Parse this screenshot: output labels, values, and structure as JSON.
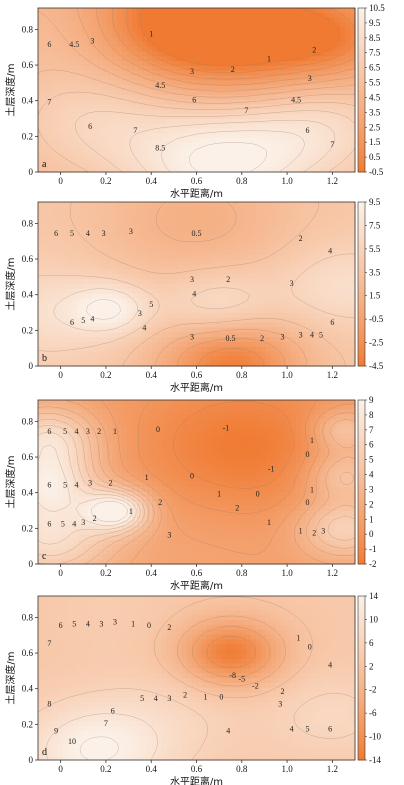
{
  "chart_data": [
    {
      "type": "heatmap",
      "panel_label": "a",
      "xlabel": "水平距离/m",
      "ylabel": "土层深度/m",
      "x_ticks": [
        "0",
        "0.2",
        "0.4",
        "0.6",
        "0.8",
        "1.0",
        "1.2"
      ],
      "y_ticks": [
        "0",
        "0.2",
        "0.4",
        "0.6",
        "0.8"
      ],
      "xlim": [
        -0.1,
        1.3
      ],
      "ylim": [
        0,
        0.92
      ],
      "colorbar": {
        "ticks": [
          "10.5",
          "9.5",
          "8.5",
          "7.5",
          "6.5",
          "5.5",
          "4.5",
          "3.5",
          "2.5",
          "1.5",
          "0.5",
          "-0.5"
        ],
        "min": -0.5,
        "max": 10.5,
        "low_color": "#f07a32",
        "high_color": "#fbf1e8"
      },
      "peaks": [
        {
          "x": 0.7,
          "y": 0.05,
          "value": 10.5,
          "r": 0.28
        },
        {
          "x": 0.15,
          "y": 0.3,
          "value": 7.5,
          "r": 0.28
        },
        {
          "x": 1.15,
          "y": 0.25,
          "value": 8,
          "r": 0.25
        },
        {
          "x": 0.5,
          "y": 0.85,
          "value": -0.5,
          "r": 0.3
        },
        {
          "x": 0.85,
          "y": 0.75,
          "value": 0,
          "r": 0.3
        },
        {
          "x": 1.2,
          "y": 0.75,
          "value": 1.5,
          "r": 0.2
        },
        {
          "x": 0.05,
          "y": 0.8,
          "value": 5.5,
          "r": 0.2
        }
      ],
      "base": 4.5,
      "contour_labels": [
        {
          "text": "6",
          "x": -0.05,
          "y": 0.7
        },
        {
          "text": "4.5",
          "x": 0.06,
          "y": 0.7
        },
        {
          "text": "3",
          "x": 0.14,
          "y": 0.72
        },
        {
          "text": "1",
          "x": 0.4,
          "y": 0.76
        },
        {
          "text": "3",
          "x": 0.58,
          "y": 0.55
        },
        {
          "text": "2",
          "x": 0.76,
          "y": 0.56
        },
        {
          "text": "1",
          "x": 0.92,
          "y": 0.62
        },
        {
          "text": "2",
          "x": 1.12,
          "y": 0.67
        },
        {
          "text": "4.5",
          "x": 0.44,
          "y": 0.47
        },
        {
          "text": "6",
          "x": 0.59,
          "y": 0.39
        },
        {
          "text": "7",
          "x": 0.82,
          "y": 0.33
        },
        {
          "text": "3",
          "x": 1.1,
          "y": 0.51
        },
        {
          "text": "4.5",
          "x": 1.04,
          "y": 0.39
        },
        {
          "text": "7",
          "x": -0.05,
          "y": 0.38
        },
        {
          "text": "6",
          "x": 0.13,
          "y": 0.24
        },
        {
          "text": "7",
          "x": 0.33,
          "y": 0.22
        },
        {
          "text": "6",
          "x": 1.09,
          "y": 0.22
        },
        {
          "text": "7",
          "x": 1.2,
          "y": 0.14
        },
        {
          "text": "8.5",
          "x": 0.44,
          "y": 0.12
        }
      ]
    },
    {
      "type": "heatmap",
      "panel_label": "b",
      "xlabel": "水平距离/m",
      "ylabel": "土层深度/m",
      "x_ticks": [
        "0",
        "0.2",
        "0.4",
        "0.6",
        "0.8",
        "1.0",
        "1.2"
      ],
      "y_ticks": [
        "0",
        "0.2",
        "0.4",
        "0.6",
        "0.8"
      ],
      "xlim": [
        -0.1,
        1.3
      ],
      "ylim": [
        0,
        0.92
      ],
      "colorbar": {
        "ticks": [
          "9.5",
          "7.5",
          "5.5",
          "3.5",
          "1.5",
          "-0.5",
          "-2.5",
          "-4.5"
        ],
        "min": -4.5,
        "max": 9.5,
        "low_color": "#f07a32",
        "high_color": "#fbf1e8"
      },
      "peaks": [
        {
          "x": 0.75,
          "y": 0.02,
          "value": -4.5,
          "r": 0.22
        },
        {
          "x": 0.22,
          "y": 0.32,
          "value": 9,
          "r": 0.12
        },
        {
          "x": 0.7,
          "y": 0.32,
          "value": 8,
          "r": 0.18
        },
        {
          "x": -0.05,
          "y": 0.3,
          "value": 7,
          "r": 0.22
        },
        {
          "x": 1.25,
          "y": 0.45,
          "value": 7,
          "r": 0.2
        },
        {
          "x": 0.6,
          "y": 0.82,
          "value": 1,
          "r": 0.3
        }
      ],
      "base": 4,
      "contour_labels": [
        {
          "text": "6",
          "x": -0.02,
          "y": 0.73
        },
        {
          "text": "5",
          "x": 0.05,
          "y": 0.73
        },
        {
          "text": "4",
          "x": 0.12,
          "y": 0.73
        },
        {
          "text": "3",
          "x": 0.19,
          "y": 0.73
        },
        {
          "text": "3",
          "x": 0.31,
          "y": 0.74
        },
        {
          "text": "0.5",
          "x": 0.6,
          "y": 0.73
        },
        {
          "text": "2",
          "x": 1.06,
          "y": 0.7
        },
        {
          "text": "4",
          "x": 1.19,
          "y": 0.63
        },
        {
          "text": "3",
          "x": 0.58,
          "y": 0.47
        },
        {
          "text": "2",
          "x": 0.74,
          "y": 0.47
        },
        {
          "text": "4",
          "x": 0.59,
          "y": 0.39
        },
        {
          "text": "3",
          "x": 1.02,
          "y": 0.45
        },
        {
          "text": "3",
          "x": 0.35,
          "y": 0.28
        },
        {
          "text": "5",
          "x": 0.4,
          "y": 0.33
        },
        {
          "text": "6",
          "x": 0.05,
          "y": 0.23
        },
        {
          "text": "5",
          "x": 0.1,
          "y": 0.24
        },
        {
          "text": "4",
          "x": 0.14,
          "y": 0.25
        },
        {
          "text": "4",
          "x": 0.37,
          "y": 0.2
        },
        {
          "text": "3",
          "x": 0.58,
          "y": 0.15
        },
        {
          "text": "0.5",
          "x": 0.75,
          "y": 0.14
        },
        {
          "text": "2",
          "x": 0.89,
          "y": 0.14
        },
        {
          "text": "3",
          "x": 0.98,
          "y": 0.15
        },
        {
          "text": "3",
          "x": 1.06,
          "y": 0.16
        },
        {
          "text": "4",
          "x": 1.11,
          "y": 0.16
        },
        {
          "text": "5",
          "x": 1.15,
          "y": 0.16
        },
        {
          "text": "6",
          "x": 1.2,
          "y": 0.23
        }
      ]
    },
    {
      "type": "heatmap",
      "panel_label": "c",
      "xlabel": "水平距离/m",
      "ylabel": "土层深度/m",
      "x_ticks": [
        "0",
        "0.2",
        "0.4",
        "0.6",
        "0.8",
        "1.0",
        "1.2"
      ],
      "y_ticks": [
        "0",
        "0.2",
        "0.4",
        "0.6",
        "0.8"
      ],
      "xlim": [
        -0.1,
        1.3
      ],
      "ylim": [
        0,
        0.92
      ],
      "colorbar": {
        "ticks": [
          "9",
          "8",
          "7",
          "6",
          "5",
          "4",
          "3",
          "2",
          "1",
          "0",
          "-1",
          "-2"
        ],
        "min": -2,
        "max": 9,
        "low_color": "#f07a32",
        "high_color": "#fbf1e8"
      },
      "peaks": [
        {
          "x": 0.25,
          "y": 0.3,
          "value": 9,
          "r": 0.1
        },
        {
          "x": -0.05,
          "y": 0.7,
          "value": 7,
          "r": 0.15
        },
        {
          "x": -0.05,
          "y": 0.45,
          "value": 7,
          "r": 0.15
        },
        {
          "x": -0.05,
          "y": 0.15,
          "value": 7,
          "r": 0.2
        },
        {
          "x": 1.25,
          "y": 0.2,
          "value": 6,
          "r": 0.14
        },
        {
          "x": 1.25,
          "y": 0.5,
          "value": 5,
          "r": 0.12
        },
        {
          "x": 1.25,
          "y": 0.75,
          "value": 5,
          "r": 0.1
        },
        {
          "x": 0.8,
          "y": 0.65,
          "value": -2,
          "r": 0.35
        },
        {
          "x": 0.6,
          "y": 0.15,
          "value": 1.5,
          "r": 0.3
        }
      ],
      "base": 1,
      "contour_labels": [
        {
          "text": "6",
          "x": -0.05,
          "y": 0.73
        },
        {
          "text": "5",
          "x": 0.02,
          "y": 0.73
        },
        {
          "text": "4",
          "x": 0.07,
          "y": 0.73
        },
        {
          "text": "3",
          "x": 0.12,
          "y": 0.73
        },
        {
          "text": "2",
          "x": 0.17,
          "y": 0.73
        },
        {
          "text": "1",
          "x": 0.24,
          "y": 0.73
        },
        {
          "text": "0",
          "x": 0.43,
          "y": 0.74
        },
        {
          "text": "-1",
          "x": 0.73,
          "y": 0.75
        },
        {
          "text": "1",
          "x": 1.11,
          "y": 0.68
        },
        {
          "text": "0",
          "x": 1.09,
          "y": 0.6
        },
        {
          "text": "6",
          "x": -0.05,
          "y": 0.43
        },
        {
          "text": "5",
          "x": 0.02,
          "y": 0.43
        },
        {
          "text": "4",
          "x": 0.07,
          "y": 0.43
        },
        {
          "text": "3",
          "x": 0.13,
          "y": 0.44
        },
        {
          "text": "2",
          "x": 0.22,
          "y": 0.44
        },
        {
          "text": "1",
          "x": 0.38,
          "y": 0.47
        },
        {
          "text": "0",
          "x": 0.58,
          "y": 0.48
        },
        {
          "text": "-1",
          "x": 0.93,
          "y": 0.52
        },
        {
          "text": "1",
          "x": 0.7,
          "y": 0.38
        },
        {
          "text": "0",
          "x": 0.87,
          "y": 0.38
        },
        {
          "text": "1",
          "x": 1.11,
          "y": 0.4
        },
        {
          "text": "0",
          "x": 1.09,
          "y": 0.33
        },
        {
          "text": "2",
          "x": 0.44,
          "y": 0.33
        },
        {
          "text": "2",
          "x": 0.78,
          "y": 0.3
        },
        {
          "text": "1",
          "x": 0.92,
          "y": 0.22
        },
        {
          "text": "6",
          "x": -0.05,
          "y": 0.21
        },
        {
          "text": "5",
          "x": 0.01,
          "y": 0.21
        },
        {
          "text": "4",
          "x": 0.06,
          "y": 0.21
        },
        {
          "text": "3",
          "x": 0.1,
          "y": 0.22
        },
        {
          "text": "2",
          "x": 0.15,
          "y": 0.24
        },
        {
          "text": "1",
          "x": 0.31,
          "y": 0.28
        },
        {
          "text": "3",
          "x": 0.48,
          "y": 0.15
        },
        {
          "text": "1",
          "x": 1.06,
          "y": 0.17
        },
        {
          "text": "2",
          "x": 1.12,
          "y": 0.16
        },
        {
          "text": "3",
          "x": 1.16,
          "y": 0.17
        }
      ]
    },
    {
      "type": "heatmap",
      "panel_label": "d",
      "xlabel": "水平距离/m",
      "ylabel": "土层深度/m",
      "x_ticks": [
        "0",
        "0.2",
        "0.4",
        "0.6",
        "0.8",
        "1.0",
        "1.2"
      ],
      "y_ticks": [
        "0",
        "0.2",
        "0.4",
        "0.6",
        "0.8"
      ],
      "xlim": [
        -0.1,
        1.3
      ],
      "ylim": [
        0,
        0.92
      ],
      "colorbar": {
        "ticks": [
          "14",
          "10",
          "6",
          "2",
          "-2",
          "-6",
          "-10",
          "-14"
        ],
        "min": -14,
        "max": 14,
        "low_color": "#f07a32",
        "high_color": "#fbf1e8"
      },
      "peaks": [
        {
          "x": 0.75,
          "y": 0.6,
          "value": -14,
          "r": 0.16
        },
        {
          "x": 0.15,
          "y": 0.05,
          "value": 14,
          "r": 0.22
        },
        {
          "x": 0.5,
          "y": 0.25,
          "value": 6,
          "r": 0.25
        },
        {
          "x": 1.2,
          "y": 0.25,
          "value": 7,
          "r": 0.2
        },
        {
          "x": 0.2,
          "y": 0.85,
          "value": 4,
          "r": 0.2
        },
        {
          "x": 1.15,
          "y": 0.85,
          "value": 3,
          "r": 0.2
        }
      ],
      "base": 3,
      "contour_labels": [
        {
          "text": "6",
          "x": 0.0,
          "y": 0.74
        },
        {
          "text": "5",
          "x": 0.06,
          "y": 0.75
        },
        {
          "text": "4",
          "x": 0.12,
          "y": 0.75
        },
        {
          "text": "3",
          "x": 0.18,
          "y": 0.75
        },
        {
          "text": "3",
          "x": 0.24,
          "y": 0.76
        },
        {
          "text": "1",
          "x": 0.32,
          "y": 0.75
        },
        {
          "text": "0",
          "x": 0.39,
          "y": 0.74
        },
        {
          "text": "2",
          "x": 0.48,
          "y": 0.73
        },
        {
          "text": "7",
          "x": -0.05,
          "y": 0.64
        },
        {
          "text": "1",
          "x": 1.05,
          "y": 0.67
        },
        {
          "text": "0",
          "x": 1.1,
          "y": 0.62
        },
        {
          "text": "4",
          "x": 1.19,
          "y": 0.52
        },
        {
          "text": "-8",
          "x": 0.76,
          "y": 0.46
        },
        {
          "text": "-5",
          "x": 0.8,
          "y": 0.44
        },
        {
          "text": "-2",
          "x": 0.86,
          "y": 0.4
        },
        {
          "text": "5",
          "x": 0.36,
          "y": 0.33
        },
        {
          "text": "4",
          "x": 0.42,
          "y": 0.33
        },
        {
          "text": "3",
          "x": 0.48,
          "y": 0.33
        },
        {
          "text": "2",
          "x": 0.55,
          "y": 0.35
        },
        {
          "text": "1",
          "x": 0.64,
          "y": 0.34
        },
        {
          "text": "0",
          "x": 0.71,
          "y": 0.34
        },
        {
          "text": "2",
          "x": 0.98,
          "y": 0.37
        },
        {
          "text": "3",
          "x": 0.97,
          "y": 0.3
        },
        {
          "text": "8",
          "x": -0.05,
          "y": 0.3
        },
        {
          "text": "6",
          "x": 0.23,
          "y": 0.26
        },
        {
          "text": "7",
          "x": 0.2,
          "y": 0.19
        },
        {
          "text": "4",
          "x": 0.74,
          "y": 0.15
        },
        {
          "text": "4",
          "x": 1.02,
          "y": 0.16
        },
        {
          "text": "5",
          "x": 1.09,
          "y": 0.16
        },
        {
          "text": "6",
          "x": 1.19,
          "y": 0.16
        },
        {
          "text": "9",
          "x": -0.02,
          "y": 0.15
        },
        {
          "text": "10",
          "x": 0.05,
          "y": 0.09
        }
      ]
    }
  ]
}
